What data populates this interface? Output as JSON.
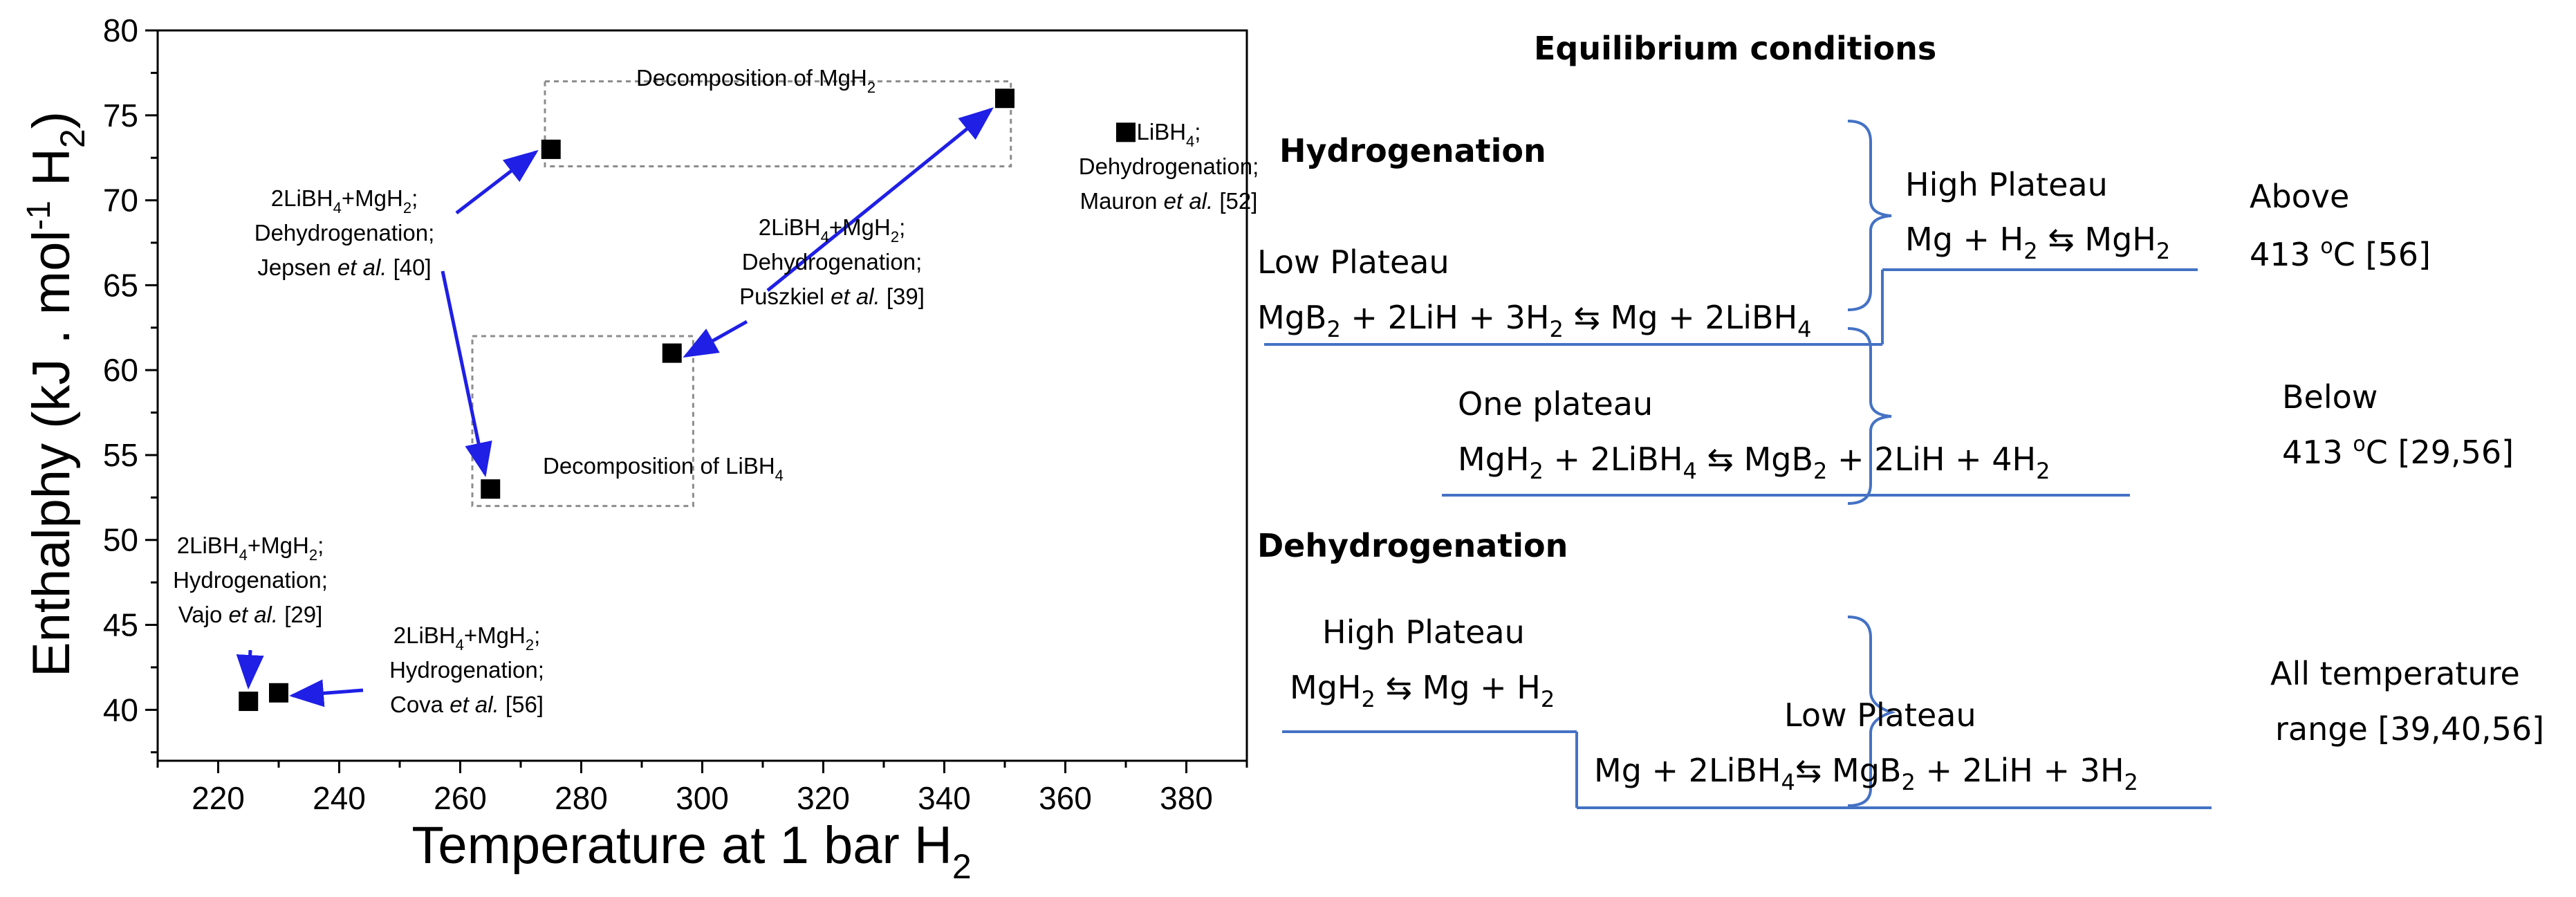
{
  "chart_data": {
    "type": "scatter",
    "xlabel": "Temperature at 1 bar H",
    "xlabel_sub": "2",
    "ylabel_parts": [
      "Enthalphy (kJ . mol",
      "-1",
      " H",
      "2",
      ")"
    ],
    "xlim": [
      210,
      390
    ],
    "ylim": [
      37,
      80
    ],
    "xticks": [
      220,
      240,
      260,
      280,
      300,
      320,
      340,
      360,
      380
    ],
    "yticks": [
      40,
      45,
      50,
      55,
      60,
      65,
      70,
      75,
      80
    ],
    "grid": false,
    "legend": "none",
    "marker_color": "#000000",
    "arrow_color": "#1f1fe6",
    "box_color": "#8c8c8c",
    "points": [
      {
        "x": 225,
        "y": 40.5
      },
      {
        "x": 230,
        "y": 41
      },
      {
        "x": 265,
        "y": 53
      },
      {
        "x": 275,
        "y": 73
      },
      {
        "x": 295,
        "y": 61
      },
      {
        "x": 350,
        "y": 76
      },
      {
        "x": 370,
        "y": 74
      }
    ],
    "boxes": [
      {
        "label": "Decomposition of MgH",
        "sub": "2",
        "x": [
          274,
          351
        ],
        "y": [
          72,
          77
        ]
      },
      {
        "label": "Decomposition of LiBH",
        "sub": "4",
        "x": [
          262,
          298.5
        ],
        "y": [
          52,
          62
        ]
      }
    ],
    "annotations": [
      {
        "id": "jepsen",
        "lines": [
          [
            "2LiBH",
            "4",
            "+MgH",
            "2",
            ";"
          ],
          [
            "Dehydrogenation;"
          ],
          [
            "Jepsen ",
            "et al.",
            " [40]"
          ]
        ]
      },
      {
        "id": "puszkiel",
        "lines": [
          [
            "2LiBH",
            "4",
            "+MgH",
            "2",
            ";"
          ],
          [
            "Dehydrogenation;"
          ],
          [
            "Puszkiel ",
            "et al.",
            " [39]"
          ]
        ]
      },
      {
        "id": "mauron",
        "lines": [
          [
            "LiBH",
            "4",
            ";"
          ],
          [
            "Dehydrogenation;"
          ],
          [
            "Mauron ",
            "et al.",
            " [52]"
          ]
        ]
      },
      {
        "id": "vajo",
        "lines": [
          [
            "2LiBH",
            "4",
            "+MgH",
            "2",
            ";"
          ],
          [
            "Hydrogenation;"
          ],
          [
            "Vajo ",
            "et al.",
            " [29]"
          ]
        ]
      },
      {
        "id": "cova",
        "lines": [
          [
            "2LiBH",
            "4",
            "+MgH",
            "2",
            ";"
          ],
          [
            "Hydrogenation;"
          ],
          [
            "Cova ",
            "et al.",
            " [56]"
          ]
        ]
      }
    ]
  },
  "scheme": {
    "title": "Equilibrium  conditions",
    "hydrogenation_heading": "Hydrogenation",
    "dehydrogenation_heading": "Dehydrogenation",
    "line_color": "#4472c4",
    "hyd_high_plateau": "High Plateau",
    "hyd_high_eq": [
      "Mg + H",
      "2",
      " ⇆ MgH",
      "2"
    ],
    "hyd_low_plateau": "Low Plateau",
    "hyd_low_eq": [
      "MgB",
      "2",
      " + 2LiH + 3H",
      "2",
      " ⇆ Mg + 2LiBH",
      "4"
    ],
    "above_line1": "Above",
    "above_line2": [
      "413 ",
      "o",
      "C [56]"
    ],
    "one_plateau": "One plateau",
    "one_eq": [
      "MgH",
      "2",
      " + 2LiBH",
      "4",
      " ⇆ MgB",
      "2",
      " + 2LiH + 4H",
      "2"
    ],
    "below_line1": "Below",
    "below_line2": [
      "413 ",
      "o",
      "C [29,56]"
    ],
    "deh_high_plateau": "High Plateau",
    "deh_high_eq": [
      "MgH",
      "2",
      " ⇆ Mg + H",
      "2"
    ],
    "deh_low_plateau": "Low Plateau",
    "deh_low_eq": [
      "Mg + 2LiBH",
      "4",
      "⇆ MgB",
      "2",
      " + 2LiH + 3H",
      "2"
    ],
    "all_line1": "All temperature",
    "all_line2": "range [39,40,56]"
  }
}
